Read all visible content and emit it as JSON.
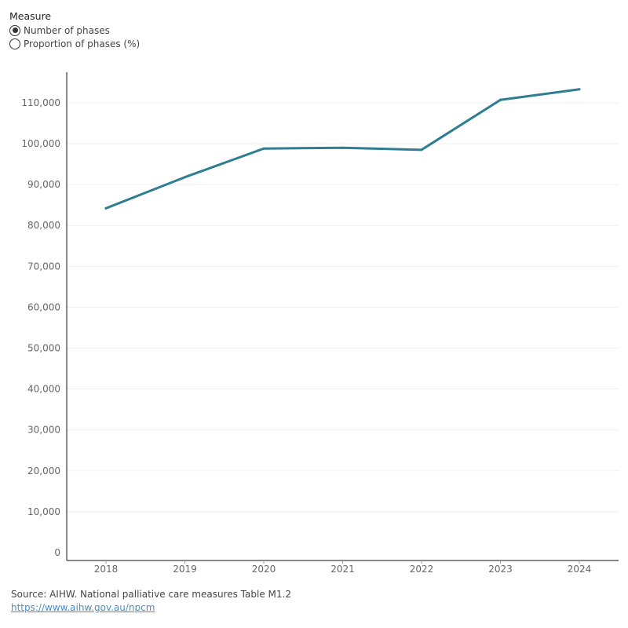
{
  "controls": {
    "title": "Measure",
    "options": [
      {
        "label": "Number of phases",
        "selected": true
      },
      {
        "label": "Proportion of phases (%)",
        "selected": false
      }
    ]
  },
  "chart_data": {
    "type": "line",
    "title": "",
    "xlabel": "",
    "ylabel": "",
    "x": [
      "2018",
      "2019",
      "2020",
      "2021",
      "2022",
      "2023",
      "2024"
    ],
    "series": [
      {
        "values": [
          84200,
          91800,
          98800,
          99000,
          98500,
          110700,
          113300
        ],
        "color": "#2e7d90"
      }
    ],
    "ylim": [
      0,
      116000
    ],
    "yticks": [
      0,
      10000,
      20000,
      30000,
      40000,
      50000,
      60000,
      70000,
      80000,
      90000,
      100000,
      110000
    ],
    "ytick_labels": [
      "0",
      "10,000",
      "20,000",
      "30,000",
      "40,000",
      "50,000",
      "60,000",
      "70,000",
      "80,000",
      "90,000",
      "100,000",
      "110,000"
    ],
    "grid": true
  },
  "footer": {
    "source": "Source: AIHW. National palliative care measures Table M1.2",
    "link": "https://www.aihw.gov.au/npcm"
  }
}
